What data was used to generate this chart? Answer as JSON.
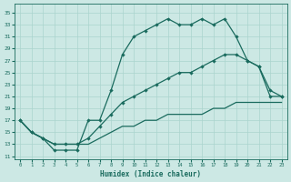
{
  "xlabel": "Humidex (Indice chaleur)",
  "bg_color": "#cce8e4",
  "line_color": "#1a6b5e",
  "grid_color": "#aad4ce",
  "xlim": [
    -0.5,
    23.5
  ],
  "ylim": [
    10.5,
    36.5
  ],
  "xticks": [
    0,
    1,
    2,
    3,
    4,
    5,
    6,
    7,
    8,
    9,
    10,
    11,
    12,
    13,
    14,
    15,
    16,
    17,
    18,
    19,
    20,
    21,
    22,
    23
  ],
  "yticks": [
    11,
    13,
    15,
    17,
    19,
    21,
    23,
    25,
    27,
    29,
    31,
    33,
    35
  ],
  "line1_x": [
    0,
    1,
    2,
    3,
    4,
    5,
    6,
    7,
    8,
    9,
    10,
    11,
    12,
    13,
    14,
    15,
    16,
    17,
    18,
    19,
    20,
    21,
    22,
    23
  ],
  "line1_y": [
    17,
    15,
    14,
    12,
    12,
    12,
    17,
    17,
    22,
    28,
    31,
    32,
    33,
    34,
    33,
    33,
    34,
    33,
    34,
    31,
    27,
    26,
    22,
    21
  ],
  "line2_x": [
    0,
    1,
    2,
    3,
    4,
    5,
    6,
    7,
    8,
    9,
    10,
    11,
    12,
    13,
    14,
    15,
    16,
    17,
    18,
    19,
    20,
    21,
    22,
    23
  ],
  "line2_y": [
    17,
    15,
    14,
    13,
    13,
    13,
    14,
    16,
    18,
    20,
    21,
    22,
    23,
    24,
    25,
    25,
    26,
    27,
    28,
    28,
    27,
    26,
    21,
    21
  ],
  "line3_x": [
    0,
    1,
    2,
    3,
    4,
    5,
    6,
    7,
    8,
    9,
    10,
    11,
    12,
    13,
    14,
    15,
    16,
    17,
    18,
    19,
    20,
    21,
    22,
    23
  ],
  "line3_y": [
    17,
    15,
    14,
    13,
    13,
    13,
    13,
    14,
    15,
    16,
    16,
    17,
    17,
    18,
    18,
    18,
    18,
    19,
    19,
    20,
    20,
    20,
    20,
    20
  ]
}
